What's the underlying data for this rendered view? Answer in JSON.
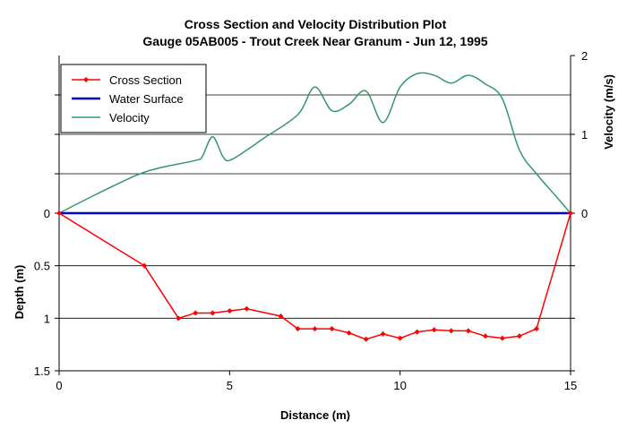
{
  "chart_data": {
    "type": "line",
    "title": "Cross Section and Velocity Distribution Plot",
    "subtitle": "Gauge 05AB005 - Trout Creek Near Granum - Jun 12, 1995",
    "xlabel": "Distance (m)",
    "ylabel_left": "Depth (m)",
    "ylabel_right": "Velocity (m/s)",
    "xlim": [
      0,
      15
    ],
    "xticks": [
      "0",
      "5",
      "10",
      "15"
    ],
    "depth_lim": [
      0,
      1.5
    ],
    "depth_ticks": [
      "0",
      "0.5",
      "1",
      "1.5"
    ],
    "velocity_lim": [
      0,
      2
    ],
    "velocity_ticks": [
      "0",
      "1",
      "2"
    ],
    "grid": "horizontal",
    "legend_position": "top-left",
    "colors": {
      "cross_section": "#ff0000",
      "water_surface": "#0000cc",
      "velocity": "#339966"
    },
    "series": [
      {
        "name": "Cross Section",
        "axis": "depth",
        "marker": "diamond",
        "x": [
          0,
          2.5,
          3.5,
          4,
          4.5,
          5,
          5.5,
          6.5,
          7,
          7.5,
          8,
          8.5,
          9,
          9.5,
          10,
          10.5,
          11,
          11.5,
          12,
          12.5,
          13,
          13.5,
          14,
          15
        ],
        "y": [
          0,
          0.5,
          1.0,
          0.95,
          0.95,
          0.93,
          0.91,
          0.98,
          1.1,
          1.1,
          1.1,
          1.14,
          1.2,
          1.15,
          1.19,
          1.13,
          1.11,
          1.12,
          1.12,
          1.17,
          1.19,
          1.17,
          1.1,
          0
        ]
      },
      {
        "name": "Water Surface",
        "axis": "depth",
        "x": [
          0,
          15
        ],
        "y": [
          0,
          0
        ]
      },
      {
        "name": "Velocity",
        "axis": "velocity",
        "x": [
          0,
          1,
          2,
          2.5,
          3,
          4,
          4.2,
          4.5,
          4.8,
          5,
          5.5,
          6,
          7,
          7.5,
          8,
          8.5,
          9,
          9.5,
          10,
          10.5,
          11,
          11.5,
          12,
          12.5,
          13,
          13.5,
          14,
          14.5,
          15
        ],
        "y": [
          0,
          0.22,
          0.43,
          0.52,
          0.58,
          0.67,
          0.72,
          0.97,
          0.72,
          0.67,
          0.8,
          0.95,
          1.25,
          1.6,
          1.3,
          1.38,
          1.55,
          1.15,
          1.6,
          1.77,
          1.75,
          1.65,
          1.75,
          1.64,
          1.45,
          0.8,
          0.5,
          0.25,
          0
        ]
      }
    ]
  }
}
